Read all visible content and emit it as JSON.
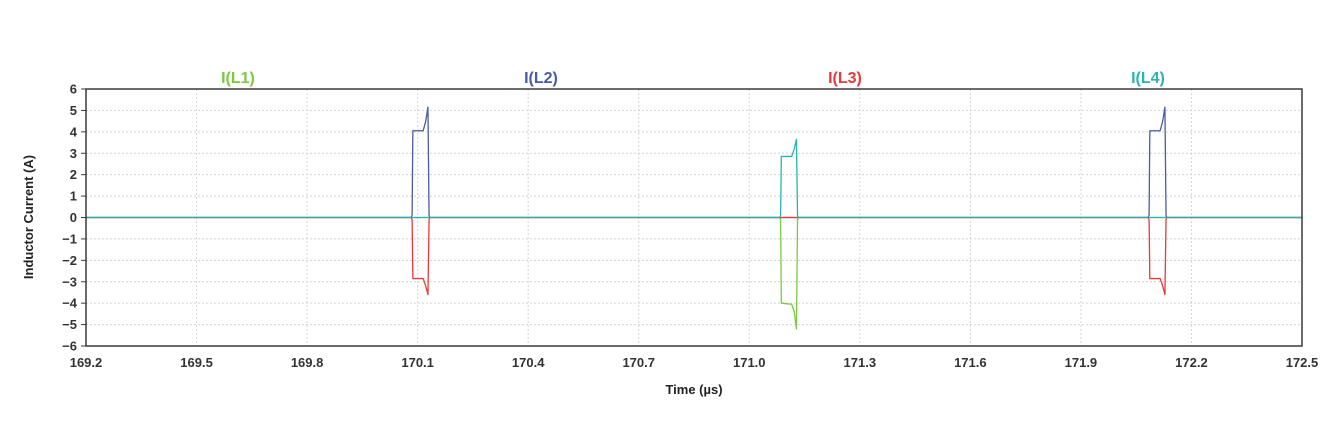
{
  "chart_data": {
    "type": "line",
    "xlabel": "Time (µs)",
    "ylabel": "Inductor Current (A)",
    "xlim": [
      169.2,
      172.5
    ],
    "ylim": [
      -6,
      6
    ],
    "x_ticks": [
      "169.2",
      "169.5",
      "169.8",
      "170.1",
      "170.4",
      "170.7",
      "171.0",
      "171.3",
      "171.6",
      "171.9",
      "172.2",
      "172.5"
    ],
    "y_ticks": [
      "6",
      "5",
      "4",
      "3",
      "2",
      "1",
      "0",
      "-1",
      "-2",
      "-3",
      "-4",
      "-5",
      "-6"
    ],
    "grid": true,
    "legend_placement": "top",
    "series": [
      {
        "name": "I(L1)",
        "color": "#7ac943",
        "points": [
          [
            169.2,
            0
          ],
          [
            171.082,
            0
          ],
          [
            171.085,
            -0.1
          ],
          [
            171.087,
            -4.0
          ],
          [
            171.115,
            -4.05
          ],
          [
            171.122,
            -4.4
          ],
          [
            171.128,
            -5.2
          ],
          [
            171.131,
            -0.1
          ],
          [
            171.133,
            0
          ],
          [
            172.5,
            0
          ]
        ]
      },
      {
        "name": "I(L2)",
        "color": "#4a5aa8",
        "points": [
          [
            169.2,
            0
          ],
          [
            170.082,
            0
          ],
          [
            170.085,
            0.1
          ],
          [
            170.087,
            4.05
          ],
          [
            170.115,
            4.05
          ],
          [
            170.122,
            4.5
          ],
          [
            170.128,
            5.15
          ],
          [
            170.131,
            0.1
          ],
          [
            170.133,
            0
          ],
          [
            172.082,
            0
          ],
          [
            172.085,
            0.1
          ],
          [
            172.087,
            4.05
          ],
          [
            172.115,
            4.05
          ],
          [
            172.122,
            4.5
          ],
          [
            172.128,
            5.15
          ],
          [
            172.131,
            0.1
          ],
          [
            172.133,
            0
          ],
          [
            172.5,
            0
          ]
        ]
      },
      {
        "name": "I(L3)",
        "color": "#e83a3a",
        "points": [
          [
            169.2,
            0
          ],
          [
            170.082,
            0
          ],
          [
            170.085,
            -0.1
          ],
          [
            170.087,
            -2.85
          ],
          [
            170.115,
            -2.85
          ],
          [
            170.122,
            -3.2
          ],
          [
            170.128,
            -3.6
          ],
          [
            170.131,
            -0.1
          ],
          [
            170.133,
            0
          ],
          [
            172.082,
            0
          ],
          [
            172.085,
            -0.1
          ],
          [
            172.087,
            -2.85
          ],
          [
            172.115,
            -2.85
          ],
          [
            172.122,
            -3.2
          ],
          [
            172.128,
            -3.6
          ],
          [
            172.131,
            -0.1
          ],
          [
            172.133,
            0
          ],
          [
            172.5,
            0
          ]
        ]
      },
      {
        "name": "I(L4)",
        "color": "#2ab3b3",
        "points": [
          [
            169.2,
            0
          ],
          [
            171.082,
            0
          ],
          [
            171.085,
            0.1
          ],
          [
            171.087,
            2.85
          ],
          [
            171.115,
            2.85
          ],
          [
            171.122,
            3.2
          ],
          [
            171.128,
            3.65
          ],
          [
            171.131,
            0.1
          ],
          [
            171.133,
            0
          ],
          [
            172.5,
            0
          ]
        ]
      }
    ]
  }
}
